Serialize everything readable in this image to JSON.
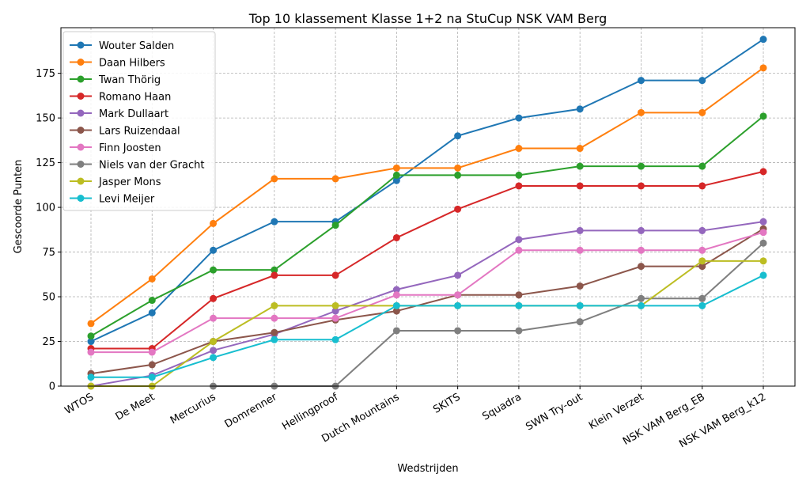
{
  "chart_data": {
    "type": "line",
    "title": "Top 10 klassement Klasse 1+2 na StuCup NSK VAM Berg",
    "xlabel": "Wedstrijden",
    "ylabel": "Gescoorde Punten",
    "ylim": [
      0,
      200.5
    ],
    "yticks": [
      0,
      25,
      50,
      75,
      100,
      125,
      150,
      175
    ],
    "grid": true,
    "legend_position": "top-left",
    "categories": [
      "WTOS",
      "De Meet",
      "Mercurius",
      "Domrenner",
      "Hellingproof",
      "Dutch Mountains",
      "SKITS",
      "Squadra",
      "SWN Try-out",
      "Klein Verzet",
      "NSK VAM Berg_EB",
      "NSK VAM Berg_k12"
    ],
    "series": [
      {
        "name": "Wouter Salden",
        "color": "#1f77b4",
        "values": [
          25,
          41,
          76,
          92,
          92,
          115,
          140,
          150,
          155,
          171,
          171,
          194
        ]
      },
      {
        "name": "Daan Hilbers",
        "color": "#ff7f0e",
        "values": [
          35,
          60,
          91,
          116,
          116,
          122,
          122,
          133,
          133,
          153,
          153,
          178
        ]
      },
      {
        "name": "Twan Thörig",
        "color": "#2ca02c",
        "values": [
          28,
          48,
          65,
          65,
          90,
          118,
          118,
          118,
          123,
          123,
          123,
          151
        ]
      },
      {
        "name": "Romano Haan",
        "color": "#d62728",
        "values": [
          21,
          21,
          49,
          62,
          62,
          83,
          99,
          112,
          112,
          112,
          112,
          120
        ]
      },
      {
        "name": "Mark Dullaart",
        "color": "#9467bd",
        "values": [
          0,
          6,
          20,
          29,
          42,
          54,
          62,
          82,
          87,
          87,
          87,
          92
        ]
      },
      {
        "name": "Lars Ruizendaal",
        "color": "#8c564b",
        "values": [
          7,
          12,
          25,
          30,
          37,
          42,
          51,
          51,
          56,
          67,
          67,
          88
        ]
      },
      {
        "name": "Finn Joosten",
        "color": "#e377c2",
        "values": [
          19,
          19,
          38,
          38,
          38,
          51,
          51,
          76,
          76,
          76,
          76,
          86
        ]
      },
      {
        "name": "Niels van der Gracht",
        "color": "#7f7f7f",
        "values": [
          null,
          null,
          0,
          0,
          0,
          31,
          31,
          31,
          36,
          49,
          49,
          80
        ]
      },
      {
        "name": "Jasper Mons",
        "color": "#bcbd22",
        "values": [
          0,
          0,
          25,
          45,
          45,
          45,
          45,
          45,
          45,
          45,
          70,
          70
        ]
      },
      {
        "name": "Levi Meijer",
        "color": "#17becf",
        "values": [
          5,
          5,
          16,
          26,
          26,
          45,
          45,
          45,
          45,
          45,
          45,
          62
        ]
      }
    ]
  }
}
